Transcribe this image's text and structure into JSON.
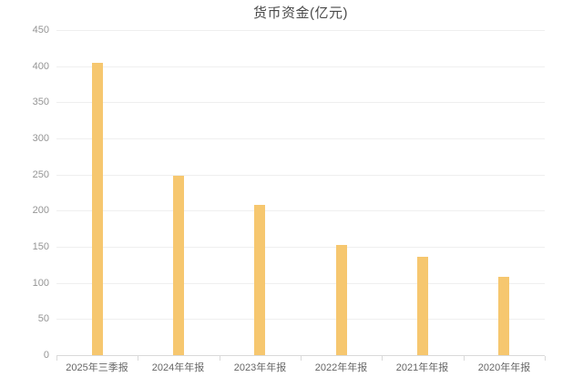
{
  "chart_data": {
    "type": "bar",
    "title": "货币资金(亿元)",
    "categories": [
      "2025年三季报",
      "2024年年报",
      "2023年年报",
      "2022年年报",
      "2021年年报",
      "2020年年报"
    ],
    "values": [
      404,
      248,
      208,
      152,
      136,
      108
    ],
    "xlabel": "",
    "ylabel": "",
    "ylim": [
      0,
      450
    ],
    "ytick_step": 50,
    "yticks": [
      0,
      50,
      100,
      150,
      200,
      250,
      300,
      350,
      400,
      450
    ],
    "grid": true,
    "legend_position": "none",
    "bar_color": "#f6c76f",
    "colors": {
      "background": "#ffffff",
      "bar": "#f6c76f",
      "gridline": "#efefef",
      "axis_line": "#d9d9d9",
      "title_text": "#4a4a4a",
      "y_tick_text": "#959595",
      "x_tick_text": "#666666"
    }
  }
}
